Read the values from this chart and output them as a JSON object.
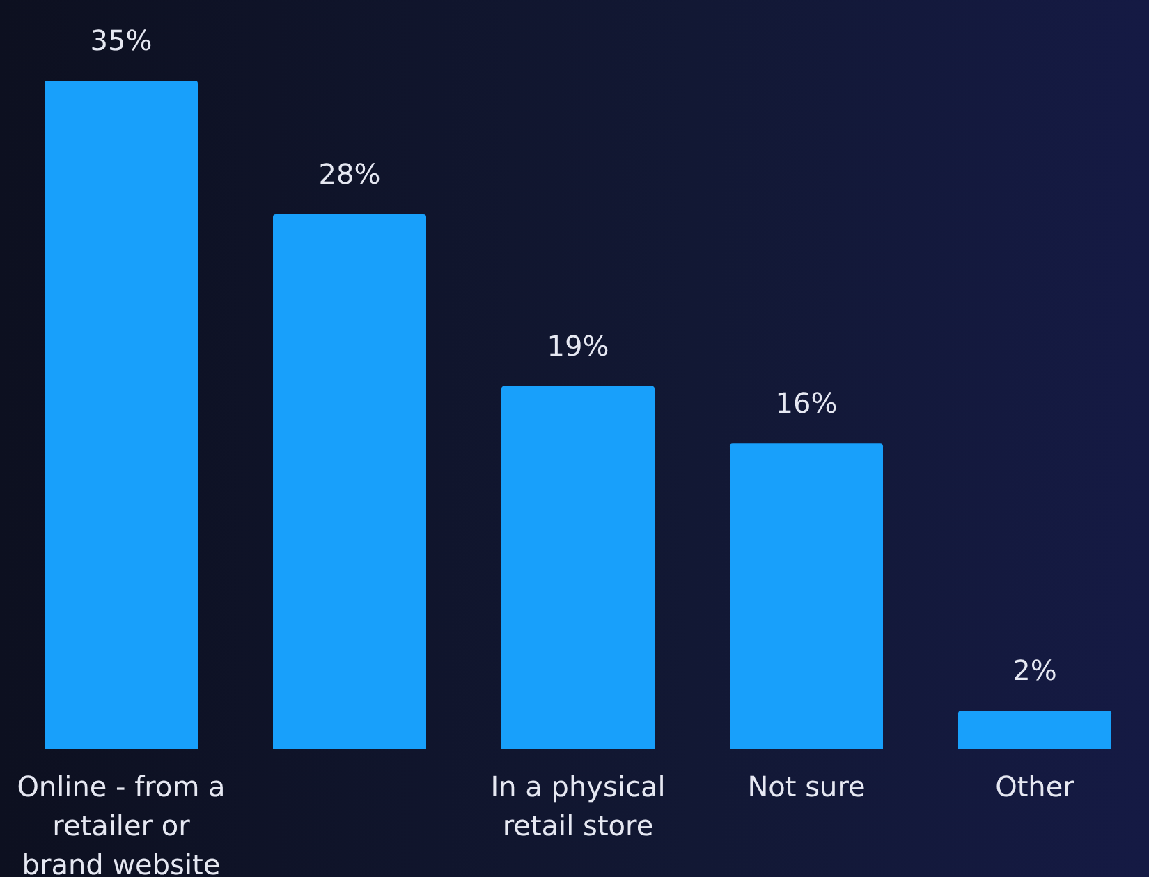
{
  "chart_data": {
    "type": "bar",
    "categories": [
      "Online - from a retailer or brand website",
      null,
      "In a physical retail store",
      "Not sure",
      "Other"
    ],
    "values": [
      35,
      28,
      19,
      16,
      2
    ],
    "value_labels": [
      "35%",
      "28%",
      "19%",
      "16%",
      "2%"
    ],
    "color": "#18a0fb",
    "grid": false,
    "legend": false
  }
}
